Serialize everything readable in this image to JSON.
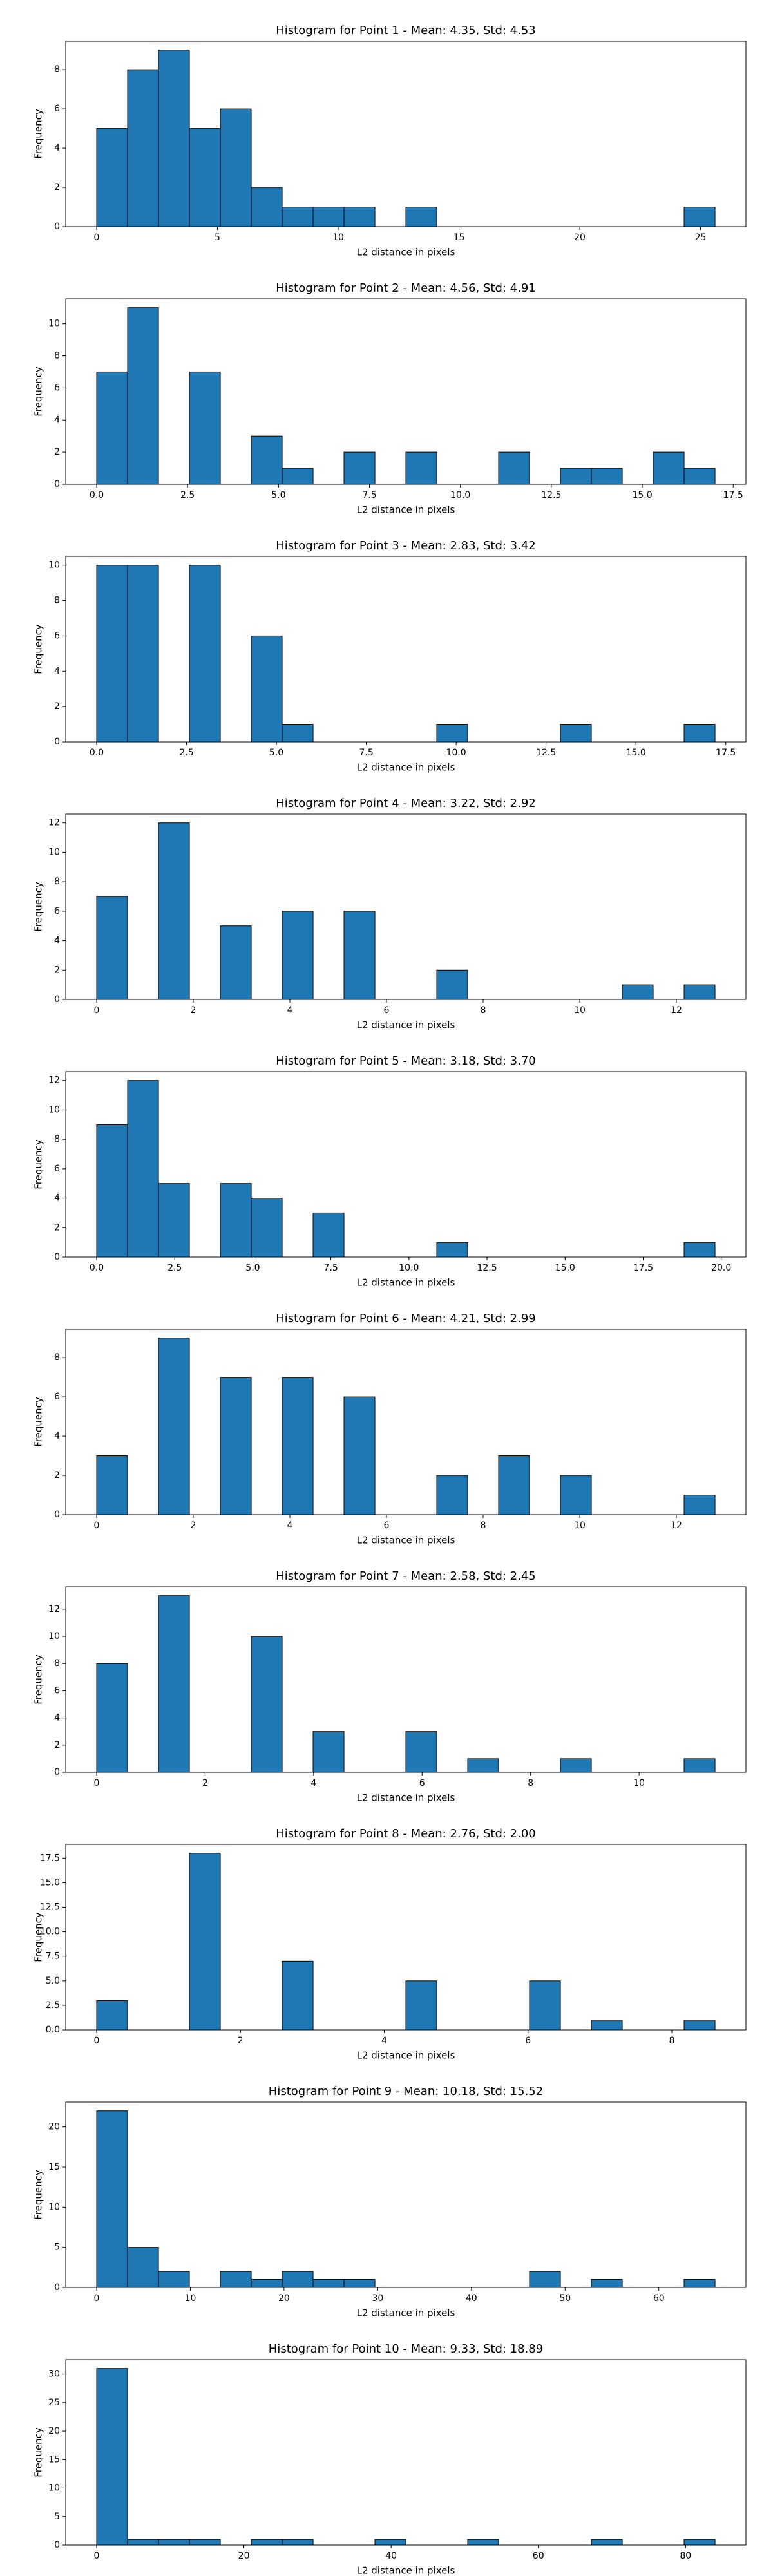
{
  "chart_data": [
    {
      "type": "histogram",
      "title": "Histogram for Point 1 - Mean: 4.35, Std: 4.53",
      "xlabel": "L2 distance in pixels",
      "ylabel": "Frequency",
      "color": "#1f77b4",
      "edgecolor": "#000000",
      "bins": [
        0,
        1.28,
        2.56,
        3.84,
        5.12,
        6.4,
        7.68,
        8.96,
        10.24,
        11.52,
        12.8,
        14.08,
        15.36,
        16.64,
        17.92,
        19.2,
        20.48,
        21.76,
        23.04,
        24.32,
        25.6
      ],
      "counts": [
        5,
        8,
        9,
        5,
        6,
        2,
        1,
        1,
        1,
        0,
        1,
        0,
        0,
        0,
        0,
        0,
        0,
        0,
        0,
        1
      ],
      "xlim": [
        -1.28,
        26.88
      ],
      "xticks": [
        0,
        5,
        10,
        15,
        20,
        25
      ],
      "ylim": [
        0,
        9.45
      ],
      "yticks": [
        0,
        2,
        4,
        6,
        8
      ]
    },
    {
      "type": "histogram",
      "title": "Histogram for Point 2 - Mean: 4.56, Std: 4.91",
      "xlabel": "L2 distance in pixels",
      "ylabel": "Frequency",
      "color": "#1f77b4",
      "edgecolor": "#000000",
      "bins": [
        0,
        0.85,
        1.7,
        2.55,
        3.4,
        4.25,
        5.1,
        5.95,
        6.8,
        7.65,
        8.5,
        9.35,
        10.2,
        11.05,
        11.9,
        12.75,
        13.6,
        14.45,
        15.3,
        16.15,
        17
      ],
      "counts": [
        7,
        11,
        0,
        7,
        0,
        3,
        1,
        0,
        2,
        0,
        2,
        0,
        0,
        2,
        0,
        1,
        1,
        0,
        2,
        1
      ],
      "xlim": [
        -0.85,
        17.85
      ],
      "xticks": [
        {
          "value": 0,
          "label": "0.0"
        },
        2.5,
        {
          "value": 5,
          "label": "5.0"
        },
        7.5,
        {
          "value": 10,
          "label": "10.0"
        },
        12.5,
        {
          "value": 15,
          "label": "15.0"
        },
        17.5
      ],
      "ylim": [
        0,
        11.55
      ],
      "yticks": [
        0,
        2,
        4,
        6,
        8,
        10
      ]
    },
    {
      "type": "histogram",
      "title": "Histogram for Point 3 - Mean: 2.83, Std: 3.42",
      "xlabel": "L2 distance in pixels",
      "ylabel": "Frequency",
      "color": "#1f77b4",
      "edgecolor": "#000000",
      "bins": [
        0,
        0.86,
        1.72,
        2.58,
        3.44,
        4.3,
        5.16,
        6.02,
        6.88,
        7.74,
        8.6,
        9.46,
        10.32,
        11.18,
        12.04,
        12.9,
        13.76,
        14.62,
        15.48,
        16.34,
        17.2
      ],
      "counts": [
        10,
        10,
        0,
        10,
        0,
        6,
        1,
        0,
        0,
        0,
        0,
        1,
        0,
        0,
        0,
        1,
        0,
        0,
        0,
        1
      ],
      "xlim": [
        -0.86,
        18.06
      ],
      "xticks": [
        {
          "value": 0,
          "label": "0.0"
        },
        2.5,
        {
          "value": 5,
          "label": "5.0"
        },
        7.5,
        {
          "value": 10,
          "label": "10.0"
        },
        12.5,
        {
          "value": 15,
          "label": "15.0"
        },
        17.5
      ],
      "ylim": [
        0,
        10.5
      ],
      "yticks": [
        0,
        2,
        4,
        6,
        8,
        10
      ]
    },
    {
      "type": "histogram",
      "title": "Histogram for Point 4 - Mean: 3.22, Std: 2.92",
      "xlabel": "L2 distance in pixels",
      "ylabel": "Frequency",
      "color": "#1f77b4",
      "edgecolor": "#000000",
      "bins": [
        0,
        0.64,
        1.28,
        1.92,
        2.56,
        3.2,
        3.84,
        4.48,
        5.12,
        5.76,
        6.4,
        7.04,
        7.68,
        8.32,
        8.96,
        9.6,
        10.24,
        10.88,
        11.52,
        12.16,
        12.8
      ],
      "counts": [
        7,
        0,
        12,
        0,
        5,
        0,
        6,
        0,
        6,
        0,
        0,
        2,
        0,
        0,
        0,
        0,
        0,
        1,
        0,
        1
      ],
      "xlim": [
        -0.64,
        13.44
      ],
      "xticks": [
        0,
        2,
        4,
        6,
        8,
        10,
        12
      ],
      "ylim": [
        0,
        12.6
      ],
      "yticks": [
        0,
        2,
        4,
        6,
        8,
        10,
        12
      ]
    },
    {
      "type": "histogram",
      "title": "Histogram for Point 5 - Mean: 3.18, Std: 3.70",
      "xlabel": "L2 distance in pixels",
      "ylabel": "Frequency",
      "color": "#1f77b4",
      "edgecolor": "#000000",
      "bins": [
        0,
        0.99,
        1.98,
        2.97,
        3.96,
        4.95,
        5.94,
        6.93,
        7.92,
        8.91,
        9.9,
        10.89,
        11.88,
        12.87,
        13.86,
        14.85,
        15.84,
        16.83,
        17.82,
        18.81,
        19.8
      ],
      "counts": [
        9,
        12,
        5,
        0,
        5,
        4,
        0,
        3,
        0,
        0,
        0,
        1,
        0,
        0,
        0,
        0,
        0,
        0,
        0,
        1
      ],
      "xlim": [
        -0.99,
        20.79
      ],
      "xticks": [
        {
          "value": 0,
          "label": "0.0"
        },
        2.5,
        {
          "value": 5,
          "label": "5.0"
        },
        7.5,
        {
          "value": 10,
          "label": "10.0"
        },
        12.5,
        {
          "value": 15,
          "label": "15.0"
        },
        17.5,
        {
          "value": 20,
          "label": "20.0"
        }
      ],
      "ylim": [
        0,
        12.6
      ],
      "yticks": [
        0,
        2,
        4,
        6,
        8,
        10,
        12
      ]
    },
    {
      "type": "histogram",
      "title": "Histogram for Point 6 - Mean: 4.21, Std: 2.99",
      "xlabel": "L2 distance in pixels",
      "ylabel": "Frequency",
      "color": "#1f77b4",
      "edgecolor": "#000000",
      "bins": [
        0,
        0.64,
        1.28,
        1.92,
        2.56,
        3.2,
        3.84,
        4.48,
        5.12,
        5.76,
        6.4,
        7.04,
        7.68,
        8.32,
        8.96,
        9.6,
        10.24,
        10.88,
        11.52,
        12.16,
        12.8
      ],
      "counts": [
        3,
        0,
        9,
        0,
        7,
        0,
        7,
        0,
        6,
        0,
        0,
        2,
        0,
        3,
        0,
        2,
        0,
        0,
        0,
        1
      ],
      "xlim": [
        -0.64,
        13.44
      ],
      "xticks": [
        0,
        2,
        4,
        6,
        8,
        10,
        12
      ],
      "ylim": [
        0,
        9.45
      ],
      "yticks": [
        0,
        2,
        4,
        6,
        8
      ]
    },
    {
      "type": "histogram",
      "title": "Histogram for Point 7 - Mean: 2.58, Std: 2.45",
      "xlabel": "L2 distance in pixels",
      "ylabel": "Frequency",
      "color": "#1f77b4",
      "edgecolor": "#000000",
      "bins": [
        0,
        0.57,
        1.14,
        1.71,
        2.28,
        2.85,
        3.42,
        3.99,
        4.56,
        5.13,
        5.7,
        6.27,
        6.84,
        7.41,
        7.98,
        8.55,
        9.12,
        9.69,
        10.26,
        10.83,
        11.4
      ],
      "counts": [
        8,
        0,
        13,
        0,
        0,
        10,
        0,
        3,
        0,
        0,
        3,
        0,
        1,
        0,
        0,
        1,
        0,
        0,
        0,
        1
      ],
      "xlim": [
        -0.57,
        11.97
      ],
      "xticks": [
        0,
        2,
        4,
        6,
        8,
        10
      ],
      "ylim": [
        0,
        13.65
      ],
      "yticks": [
        0,
        2,
        4,
        6,
        8,
        10,
        12
      ]
    },
    {
      "type": "histogram",
      "title": "Histogram for Point 8 - Mean: 2.76, Std: 2.00",
      "xlabel": "L2 distance in pixels",
      "ylabel": "Frequency",
      "color": "#1f77b4",
      "edgecolor": "#000000",
      "bins": [
        0,
        0.43,
        0.86,
        1.29,
        1.72,
        2.15,
        2.58,
        3.01,
        3.44,
        3.87,
        4.3,
        4.73,
        5.16,
        5.59,
        6.02,
        6.45,
        6.88,
        7.31,
        7.74,
        8.17,
        8.6
      ],
      "counts": [
        3,
        0,
        0,
        18,
        0,
        0,
        7,
        0,
        0,
        0,
        5,
        0,
        0,
        0,
        5,
        0,
        1,
        0,
        0,
        1
      ],
      "xlim": [
        -0.43,
        9.03
      ],
      "xticks": [
        0,
        2,
        4,
        6,
        8
      ],
      "ylim": [
        0,
        18.9
      ],
      "yticks": [
        {
          "value": 0,
          "label": "0.0"
        },
        2.5,
        {
          "value": 5,
          "label": "5.0"
        },
        7.5,
        {
          "value": 10,
          "label": "10.0"
        },
        12.5,
        {
          "value": 15,
          "label": "15.0"
        },
        17.5
      ]
    },
    {
      "type": "histogram",
      "title": "Histogram for Point 9 - Mean: 10.18, Std: 15.52",
      "xlabel": "L2 distance in pixels",
      "ylabel": "Frequency",
      "color": "#1f77b4",
      "edgecolor": "#000000",
      "bins": [
        0,
        3.3,
        6.6,
        9.9,
        13.2,
        16.5,
        19.8,
        23.1,
        26.4,
        29.7,
        33,
        36.3,
        39.6,
        42.9,
        46.2,
        49.5,
        52.8,
        56.1,
        59.4,
        62.7,
        66
      ],
      "counts": [
        22,
        5,
        2,
        0,
        2,
        1,
        2,
        1,
        1,
        0,
        0,
        0,
        0,
        0,
        2,
        0,
        1,
        0,
        0,
        1
      ],
      "xlim": [
        -3.3,
        69.3
      ],
      "xticks": [
        0,
        10,
        20,
        30,
        40,
        50,
        60
      ],
      "ylim": [
        0,
        23.1
      ],
      "yticks": [
        0,
        5,
        10,
        15,
        20
      ]
    },
    {
      "type": "histogram",
      "title": "Histogram for Point 10 - Mean: 9.33, Std: 18.89",
      "xlabel": "L2 distance in pixels",
      "ylabel": "Frequency",
      "color": "#1f77b4",
      "edgecolor": "#000000",
      "bins": [
        0,
        4.2,
        8.4,
        12.6,
        16.8,
        21,
        25.2,
        29.4,
        33.6,
        37.8,
        42,
        46.2,
        50.4,
        54.6,
        58.8,
        63,
        67.2,
        71.4,
        75.6,
        79.8,
        84
      ],
      "counts": [
        31,
        1,
        1,
        1,
        0,
        1,
        1,
        0,
        0,
        1,
        0,
        0,
        1,
        0,
        0,
        0,
        1,
        0,
        0,
        1
      ],
      "xlim": [
        -4.2,
        88.2
      ],
      "xticks": [
        0,
        20,
        40,
        60,
        80
      ],
      "ylim": [
        0,
        32.55
      ],
      "yticks": [
        0,
        5,
        10,
        15,
        20,
        25,
        30
      ]
    }
  ]
}
